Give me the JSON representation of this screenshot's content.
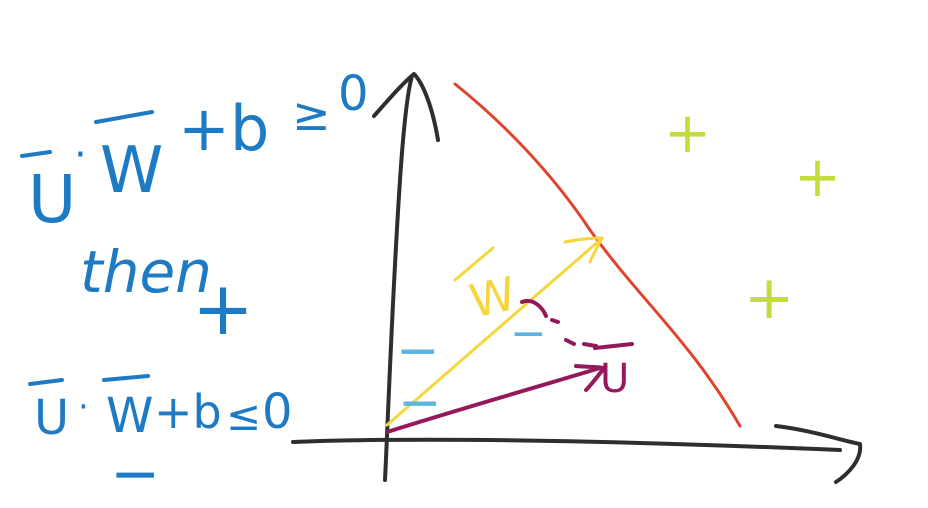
{
  "colors": {
    "ink_blue": "#1f7ac4",
    "axis": "#2e2e2e",
    "boundary": "#e0442d",
    "w_vector": "#f5d63d",
    "u_vector": "#93195b",
    "positive": "#c5dc3c",
    "negative": "#5db4e0",
    "background": "#ffffff"
  },
  "rule_positive": {
    "u": "U",
    "dot": "·",
    "w": "W",
    "rest": "+b",
    "ge": "≥",
    "zero": "0"
  },
  "then_label": "then",
  "positive_class_symbol": "+",
  "rule_negative": {
    "u": "U",
    "dot": "·",
    "w": "W",
    "rest": "+b",
    "le": "≤",
    "zero": "0"
  },
  "negative_class_symbol": "−",
  "w_vector_label": "W",
  "u_vector_label": "U",
  "positive_samples": [
    "+",
    "+",
    "+"
  ],
  "negative_samples": [
    "−",
    "−",
    "−"
  ]
}
